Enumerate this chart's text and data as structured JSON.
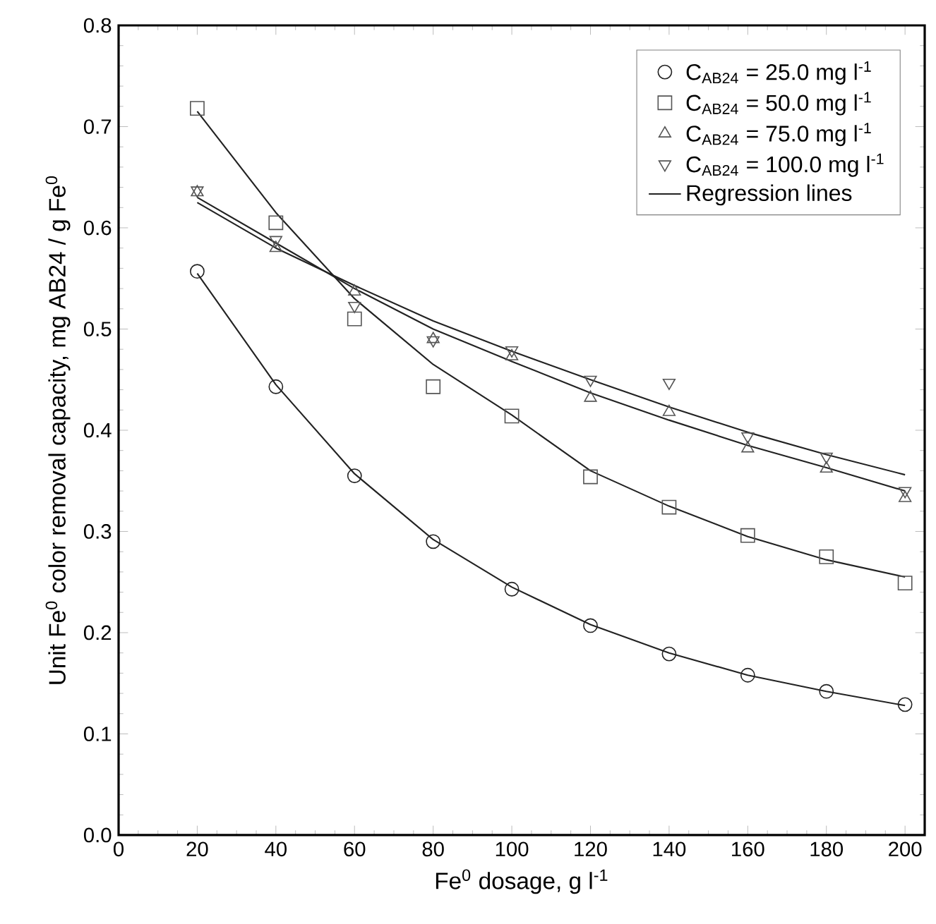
{
  "chart_data": {
    "type": "scatter",
    "xlabel": "Fe$^{0}$ dosage, g l$^{-1}$",
    "ylabel": "Unit Fe$^{0}$ color removal capacity, mg AB24 / g Fe$^{0}$",
    "x": [
      20,
      40,
      60,
      80,
      100,
      120,
      140,
      160,
      180,
      200
    ],
    "series": [
      {
        "name": "C$_{AB24}$ = 25.0 mg l$^{-1}$",
        "color": "#222222",
        "marker": "circle",
        "values": [
          0.557,
          0.443,
          0.355,
          0.29,
          0.243,
          0.207,
          0.179,
          0.158,
          0.142,
          0.129
        ]
      },
      {
        "name": "C$_{AB24}$ = 50.0 mg l$^{-1}$",
        "color": "#555555",
        "marker": "square",
        "values": [
          0.718,
          0.605,
          0.51,
          0.443,
          0.414,
          0.354,
          0.324,
          0.296,
          0.275,
          0.249
        ]
      },
      {
        "name": "C$_{AB24}$ = 75.0 mg l$^{-1}$",
        "color": "#555555",
        "marker": "triangle",
        "values": [
          0.635,
          0.58,
          0.537,
          0.49,
          0.473,
          0.432,
          0.418,
          0.382,
          0.362,
          0.333
        ]
      },
      {
        "name": "C$_{AB24}$ = 100.0 mg l$^{-1}$",
        "color": "#555555",
        "marker": "triangle_down",
        "values": [
          0.637,
          0.588,
          0.523,
          0.489,
          0.479,
          0.45,
          0.447,
          0.394,
          0.374,
          0.34
        ]
      },
      {
        "name": "Regression lines",
        "type": "line",
        "marker": "none",
        "color": "#222222",
        "values": [
          0.555,
          0.445,
          0.357,
          0.292,
          0.245,
          0.208,
          0.18,
          0.158,
          0.142,
          0.128
        ]
      },
      {
        "type": "line",
        "marker": "none",
        "color": "#222222",
        "values": [
          0.715,
          0.615,
          0.53,
          0.465,
          0.415,
          0.36,
          0.325,
          0.295,
          0.272,
          0.255
        ]
      },
      {
        "type": "line",
        "marker": "none",
        "color": "#222222",
        "values": [
          0.63,
          0.585,
          0.54,
          0.5,
          0.468,
          0.437,
          0.41,
          0.385,
          0.363,
          0.34
        ]
      },
      {
        "type": "line",
        "marker": "none",
        "color": "#222222",
        "values": [
          0.625,
          0.58,
          0.543,
          0.508,
          0.478,
          0.45,
          0.423,
          0.398,
          0.376,
          0.356
        ]
      }
    ],
    "xlim": [
      0,
      205
    ],
    "ylim": [
      0,
      0.8
    ],
    "xticks": [
      0,
      20,
      40,
      60,
      80,
      100,
      120,
      140,
      160,
      180,
      200
    ],
    "yticks": [
      {
        "value": 0,
        "label": "0.0"
      },
      {
        "value": 0.1,
        "label": "0.1"
      },
      {
        "value": 0.2,
        "label": "0.2"
      },
      {
        "value": 0.3,
        "label": "0.3"
      },
      {
        "value": 0.4,
        "label": "0.4"
      },
      {
        "value": 0.5,
        "label": "0.5"
      },
      {
        "value": 0.6,
        "label": "0.6"
      },
      {
        "value": 0.7,
        "label": "0.7"
      },
      {
        "value": 0.8,
        "label": "0.8"
      }
    ],
    "grid": false,
    "legend": "top right"
  }
}
